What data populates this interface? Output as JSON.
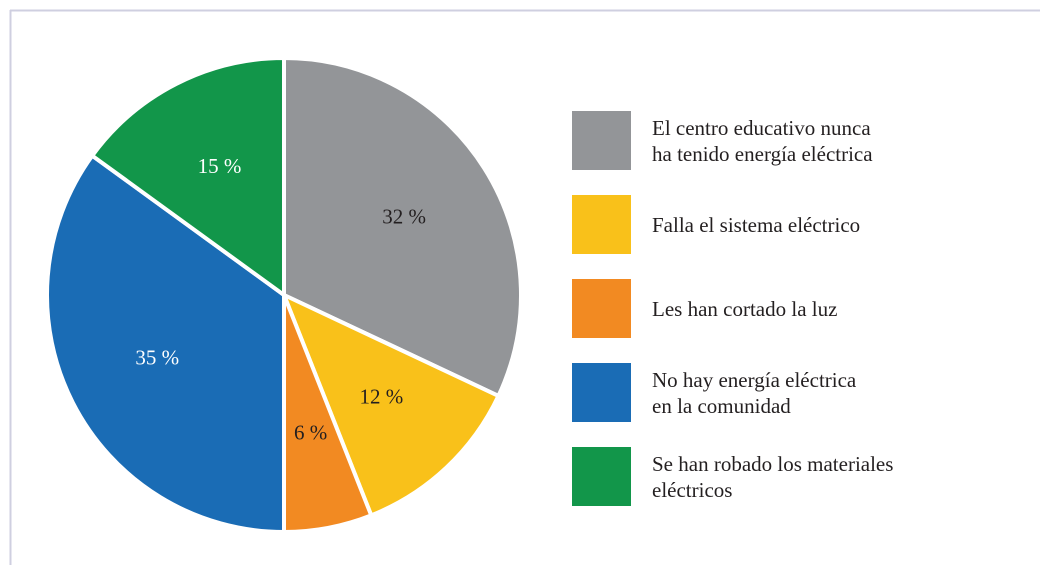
{
  "chart_data": {
    "type": "pie",
    "categories": [
      "El centro educativo nunca\nha tenido energía eléctrica",
      "Falla el sistema eléctrico",
      "Les han cortado la luz",
      "No hay energía eléctrica\nen la comunidad",
      "Se han robado los materiales\neléctricos"
    ],
    "values": [
      32,
      12,
      6,
      35,
      15
    ],
    "value_labels": [
      "32 %",
      "12 %",
      "6 %",
      "35 %",
      "15 %"
    ],
    "colors": [
      "#939598",
      "#f9c11a",
      "#f28a22",
      "#1a6cb5",
      "#12964a"
    ],
    "legend": "right"
  }
}
